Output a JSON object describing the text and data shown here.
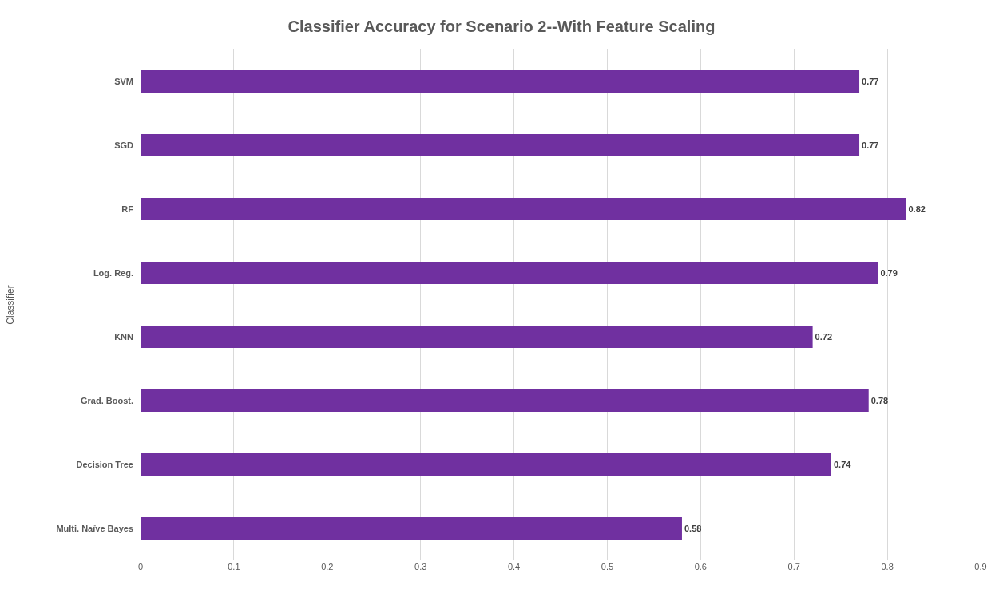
{
  "chart_data": {
    "type": "bar",
    "orientation": "horizontal",
    "title": "Classifier Accuracy for Scenario 2--With Feature Scaling",
    "ylabel": "Classifier",
    "categories": [
      "SVM",
      "SGD",
      "RF",
      "Log. Reg.",
      "KNN",
      "Grad. Boost.",
      "Decision Tree",
      "Multi. Naïve Bayes"
    ],
    "values": [
      0.77,
      0.77,
      0.82,
      0.79,
      0.72,
      0.78,
      0.74,
      0.58
    ],
    "color": "#7030a0",
    "xlim": [
      0,
      0.9
    ],
    "xticks": [
      0,
      0.1,
      0.2,
      0.3,
      0.4,
      0.5,
      0.6,
      0.7,
      0.8,
      0.9
    ],
    "grid": "x",
    "data_labels": true,
    "legend": false
  }
}
